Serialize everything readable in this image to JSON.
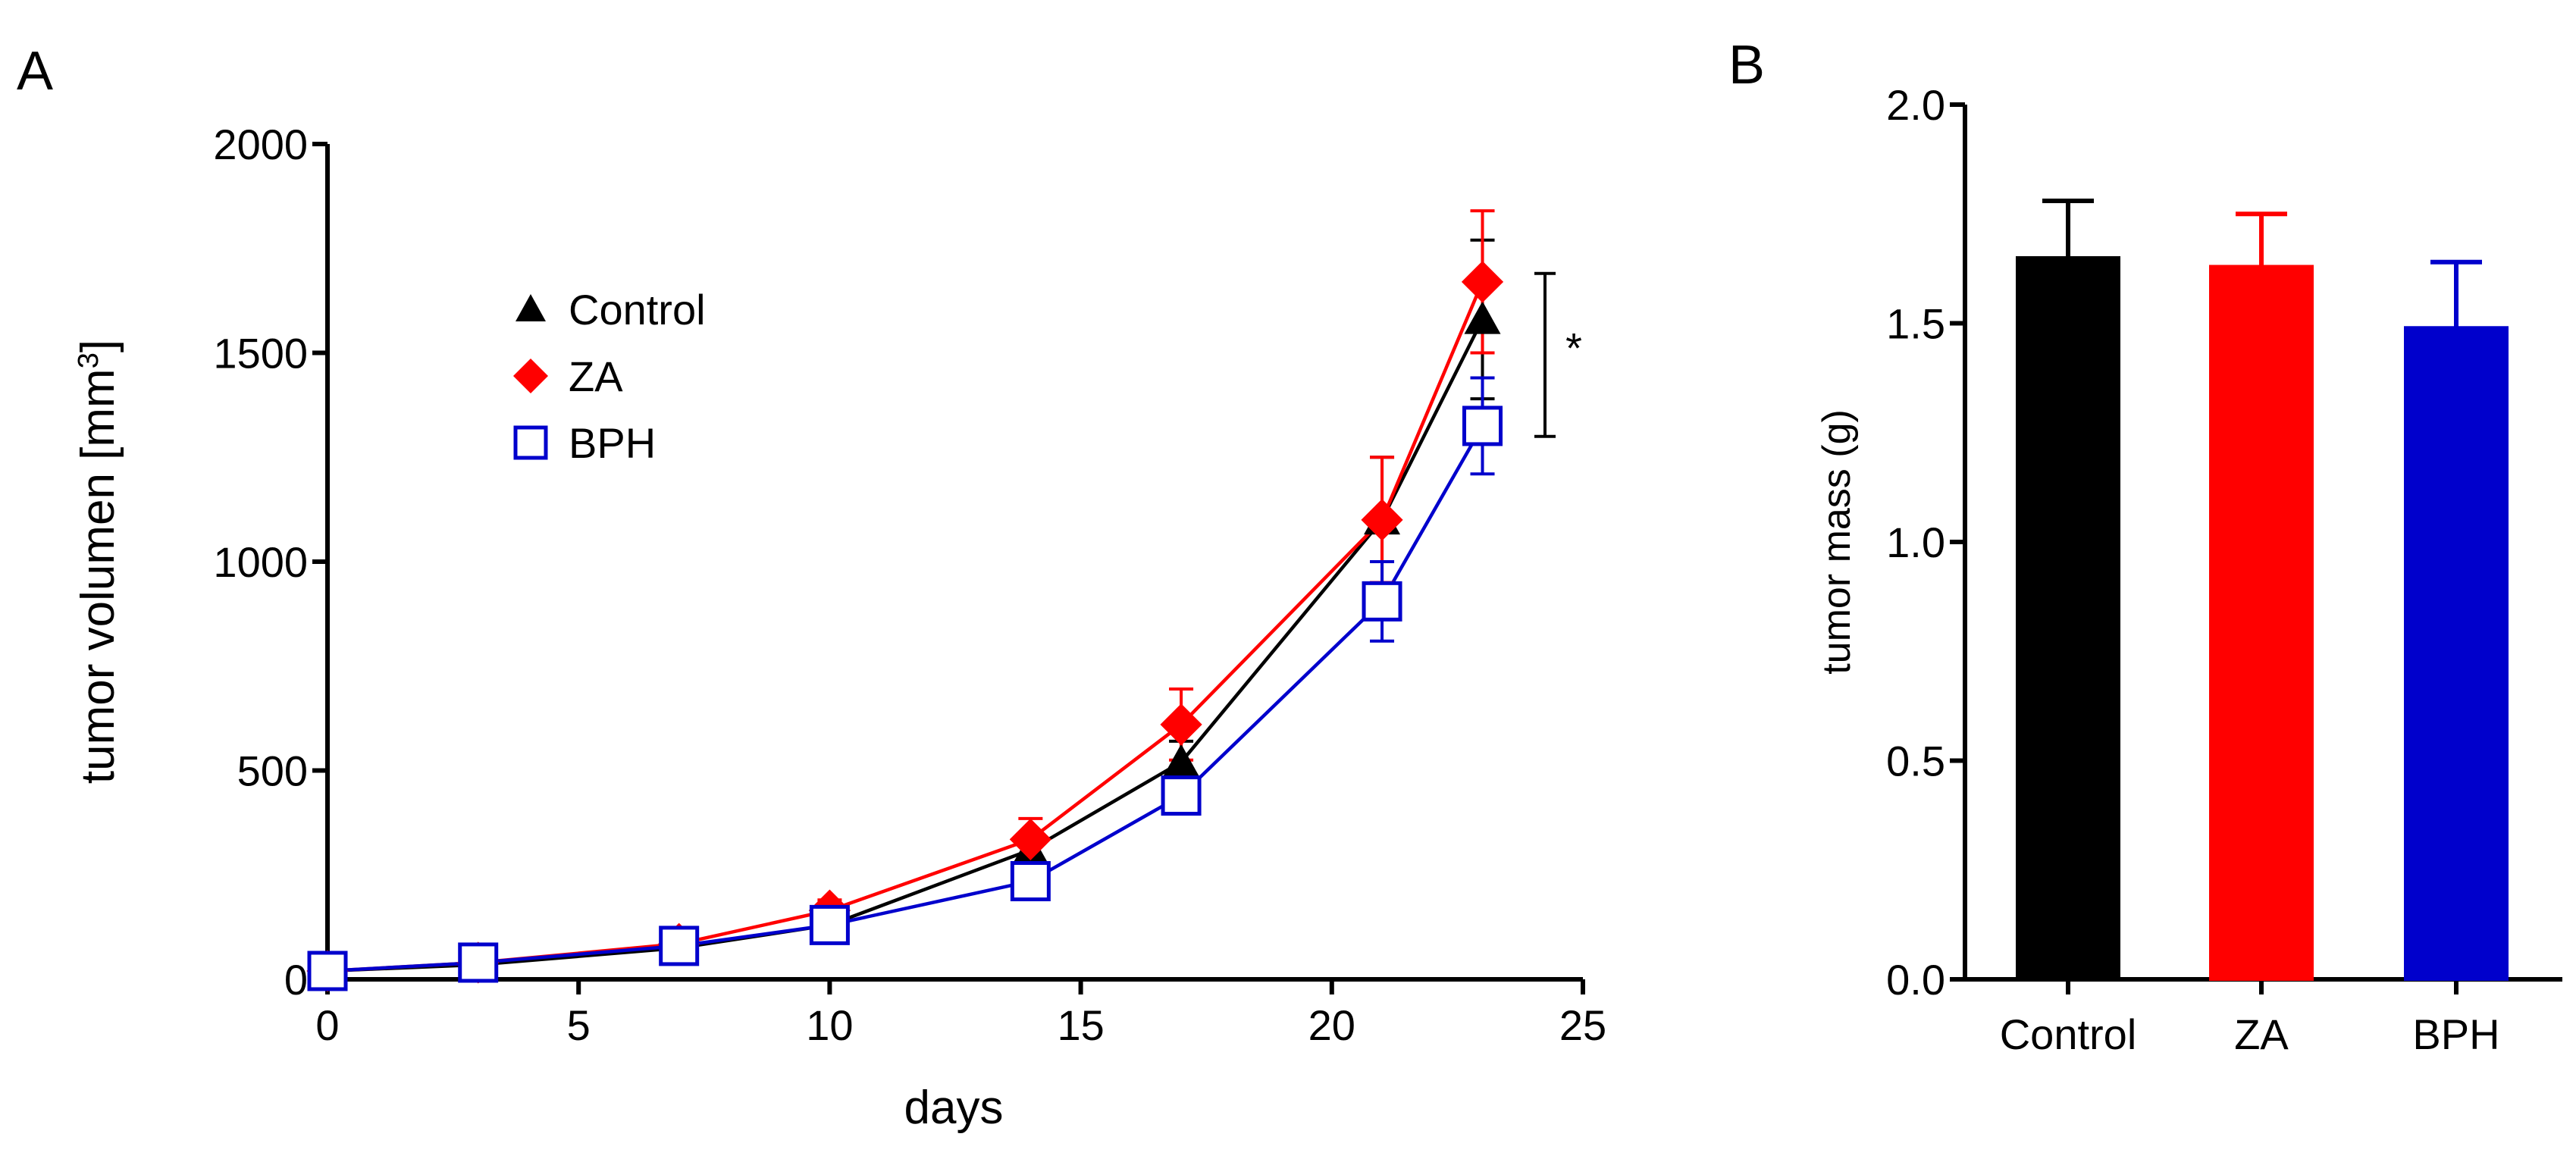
{
  "panels": {
    "a": {
      "letter": "A"
    },
    "b": {
      "letter": "B"
    }
  },
  "colors": {
    "control": "#000000",
    "za": "#ff0000",
    "bph": "#0000cc"
  },
  "chart_data": [
    {
      "type": "line",
      "panel": "A",
      "xlabel": "days",
      "ylabel": "tumor volumen [mm",
      "ylabel_sup": "3",
      "ylabel_end": "]",
      "xlim": [
        0,
        25
      ],
      "ylim": [
        0,
        2000
      ],
      "xticks": [
        0,
        5,
        10,
        15,
        20,
        25
      ],
      "yticks": [
        0,
        500,
        1000,
        1500,
        2000
      ],
      "x": [
        0,
        3,
        7,
        10,
        14,
        17,
        21,
        23
      ],
      "legend_position": "upper-left",
      "series": [
        {
          "name": "Control",
          "marker": "triangle",
          "color": "#000000",
          "values": [
            20,
            35,
            75,
            130,
            310,
            520,
            1100,
            1580
          ],
          "errors": [
            10,
            12,
            20,
            20,
            40,
            50,
            150,
            190
          ]
        },
        {
          "name": "ZA",
          "marker": "diamond",
          "color": "#ff0000",
          "values": [
            20,
            40,
            85,
            165,
            335,
            610,
            1100,
            1670
          ],
          "errors": [
            10,
            12,
            25,
            25,
            50,
            85,
            150,
            170
          ]
        },
        {
          "name": "BPH",
          "marker": "open-square",
          "color": "#0000cc",
          "values": [
            20,
            40,
            80,
            130,
            235,
            440,
            905,
            1325
          ],
          "errors": [
            10,
            12,
            20,
            15,
            35,
            40,
            95,
            115
          ]
        }
      ],
      "annotation": {
        "text": "*",
        "from": 1300,
        "to": 1690
      }
    },
    {
      "type": "bar",
      "panel": "B",
      "ylabel": "tumor mass (g)",
      "categories": [
        "Control",
        "ZA",
        "BPH"
      ],
      "values": [
        1.65,
        1.63,
        1.49
      ],
      "errors": [
        0.13,
        0.12,
        0.15
      ],
      "colors": [
        "#000000",
        "#ff0000",
        "#0000cc"
      ],
      "ylim": [
        0,
        2.0
      ],
      "yticks": [
        "0.0",
        "0.5",
        "1.0",
        "1.5",
        "2.0"
      ]
    }
  ]
}
